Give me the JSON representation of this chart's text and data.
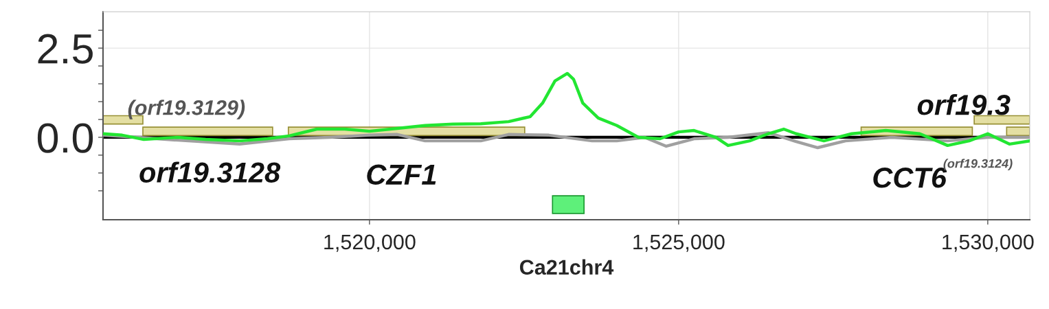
{
  "chart_data": {
    "type": "line",
    "xlabel": "Ca21chr4",
    "x": [
      1515690,
      1516000,
      1516350,
      1516900,
      1517350,
      1517900,
      1518350,
      1518700,
      1519150,
      1519600,
      1520000,
      1520450,
      1520900,
      1521350,
      1521800,
      1522250,
      1522600,
      1522800,
      1523000,
      1523200,
      1523300,
      1523450,
      1523700,
      1524000,
      1524350,
      1524700,
      1525000,
      1525250,
      1525600,
      1525800,
      1526150,
      1526450,
      1526700,
      1526900,
      1527350,
      1527800,
      1528350,
      1528900,
      1529350,
      1529700,
      1530000,
      1530350,
      1530680
    ],
    "series": [
      {
        "color": "#22e632",
        "values": [
          0.1,
          0.06,
          -0.06,
          0.0,
          -0.06,
          -0.1,
          -0.04,
          0.04,
          0.23,
          0.23,
          0.17,
          0.25,
          0.33,
          0.37,
          0.38,
          0.44,
          0.58,
          0.96,
          1.58,
          1.79,
          1.63,
          0.96,
          0.54,
          0.33,
          0.0,
          -0.04,
          0.15,
          0.19,
          0.0,
          -0.23,
          -0.1,
          0.1,
          0.23,
          0.1,
          -0.1,
          0.1,
          0.19,
          0.1,
          -0.23,
          -0.1,
          0.1,
          -0.19,
          -0.1
        ]
      },
      {
        "color": "#a0a0a0",
        "x": [
          1515690,
          1516250,
          1516900,
          1517900,
          1518700,
          1519350,
          1520000,
          1520450,
          1520900,
          1521800,
          1522250,
          1522900,
          1523600,
          1524000,
          1524450,
          1524800,
          1525250,
          1525800,
          1526450,
          1526900,
          1527250,
          1527700,
          1528450,
          1529350,
          1530000,
          1530680
        ],
        "values": [
          0.06,
          0.0,
          -0.08,
          -0.19,
          -0.04,
          0.0,
          0.06,
          0.08,
          -0.1,
          -0.1,
          0.08,
          0.06,
          -0.1,
          -0.1,
          0.0,
          -0.25,
          -0.04,
          0.0,
          0.13,
          -0.12,
          -0.29,
          -0.1,
          0.0,
          -0.1,
          0.0,
          0.0
        ]
      }
    ],
    "xlim": [
      1515690,
      1530680
    ],
    "xticks": [
      {
        "value": 1520000,
        "label": "1,520,000"
      },
      {
        "value": 1525000,
        "label": "1,525,000"
      },
      {
        "value": 1530000,
        "label": "1,530,000"
      }
    ],
    "ylim": [
      -2.31,
      3.52
    ],
    "yticks": [
      {
        "value": -1.5,
        "label": null
      },
      {
        "value": -1.0,
        "label": null
      },
      {
        "value": -0.5,
        "label": null
      },
      {
        "value": 0.0,
        "label": "0.0"
      },
      {
        "value": 0.5,
        "label": null
      },
      {
        "value": 1.0,
        "label": null
      },
      {
        "value": 1.5,
        "label": null
      },
      {
        "value": 2.0,
        "label": null
      },
      {
        "value": 2.5,
        "label": "2.5"
      },
      {
        "value": 3.0,
        "label": null
      }
    ],
    "grid": true,
    "ref_lines": [
      {
        "axis": "y",
        "value": 0.0,
        "color": "#000000"
      }
    ],
    "annotations": [
      "(orf19.3129)",
      "orf19.3128",
      "CZF1",
      "CCT6",
      "(orf19.3124)",
      "orf19.3"
    ]
  }
}
